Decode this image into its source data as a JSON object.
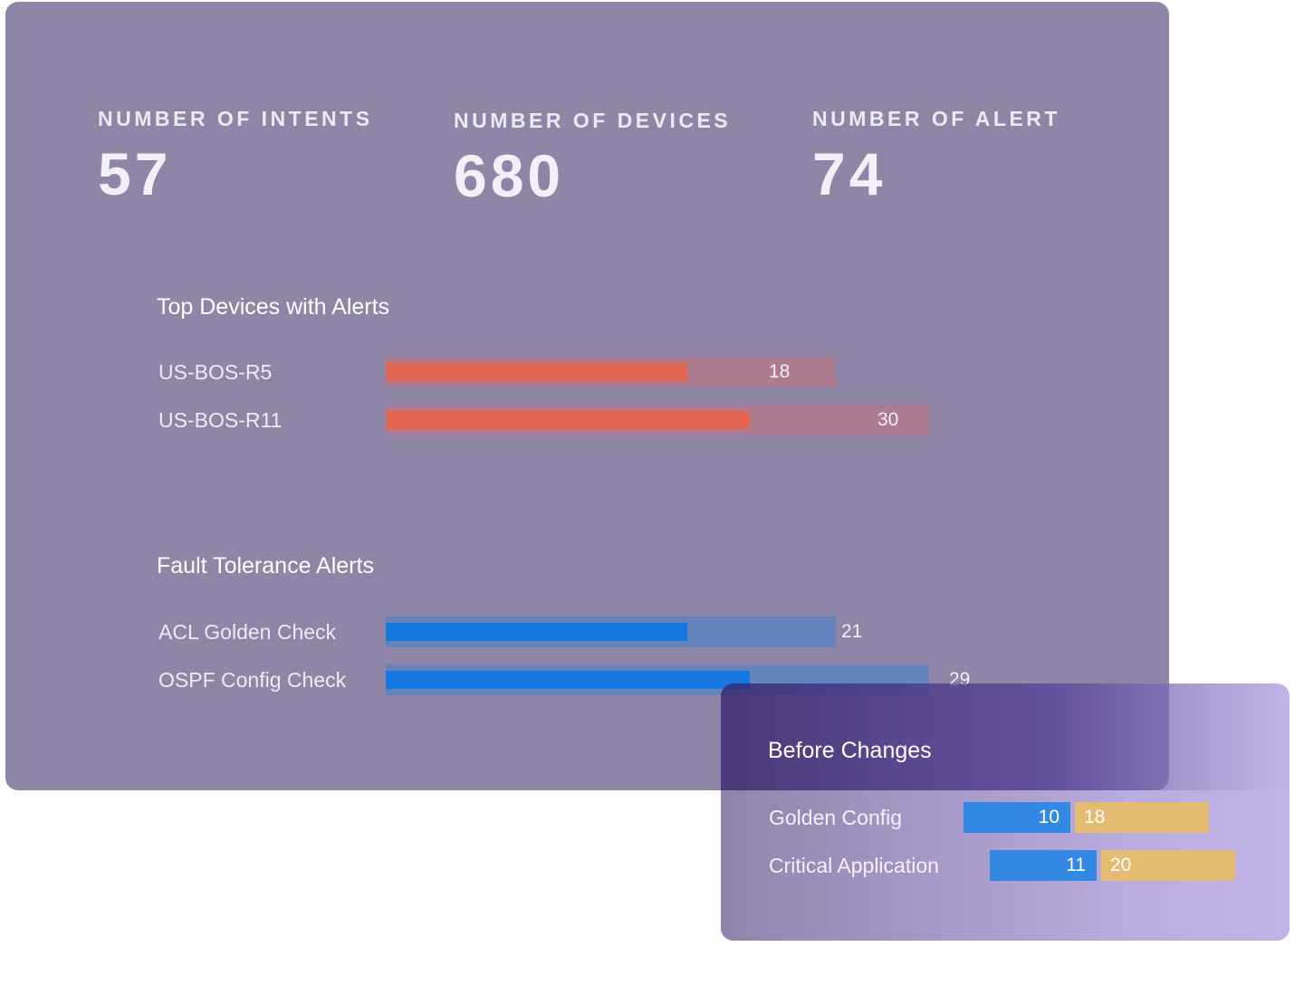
{
  "stats": [
    {
      "label": "NUMBER OF INTENTS",
      "value": "57"
    },
    {
      "label": "NUMBER OF DEVICES",
      "value": "680"
    },
    {
      "label": "NUMBER OF ALERT",
      "value": "74"
    }
  ],
  "chart_data": [
    {
      "type": "bar",
      "title": "Top Devices with Alerts",
      "categories": [
        "US-BOS-R5",
        "US-BOS-R11"
      ],
      "values": [
        18,
        30
      ],
      "fill_fraction": [
        0.67,
        0.67
      ],
      "colors": {
        "fill": "#e2654f",
        "track": "#ad7c91"
      }
    },
    {
      "type": "bar",
      "title": "Fault Tolerance Alerts",
      "categories": [
        "ACL Golden Check",
        "OSPF Config Check"
      ],
      "values": [
        21,
        29
      ],
      "fill_fraction": [
        0.67,
        0.67
      ],
      "colors": {
        "fill": "#1777e0",
        "track": "#6482bc"
      }
    },
    {
      "type": "bar",
      "title": "Before Changes",
      "categories": [
        "Golden Config",
        "Critical Application"
      ],
      "series": [
        {
          "name": "blue",
          "values": [
            10,
            11
          ],
          "color": "#3288e3"
        },
        {
          "name": "gold",
          "values": [
            18,
            20
          ],
          "color": "#e3bc72"
        }
      ]
    }
  ]
}
